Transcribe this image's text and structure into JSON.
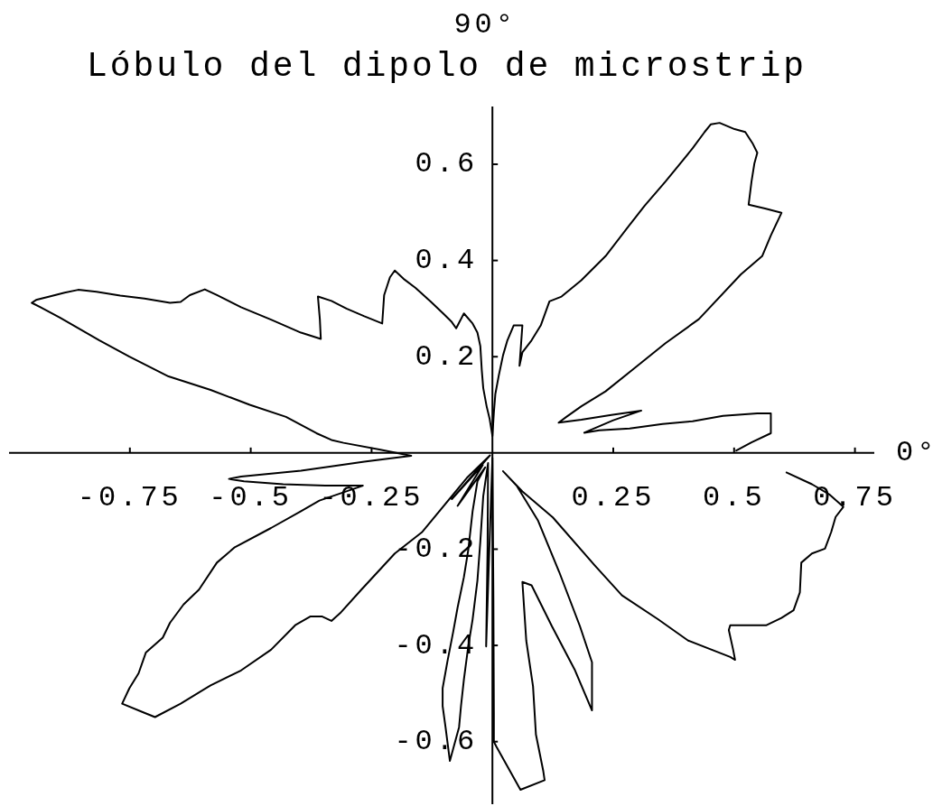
{
  "chart_data": {
    "type": "line",
    "title": "Lóbulo del dipolo de microstrip",
    "xlabel": "0°",
    "ylabel": "90°",
    "color": "#000000",
    "marker": "none",
    "xlim": [
      -1.0,
      0.79
    ],
    "ylim": [
      -0.73,
      0.72
    ],
    "xticks": [
      -0.75,
      -0.5,
      -0.25,
      0.25,
      0.5,
      0.75
    ],
    "yticks": [
      -0.6,
      -0.4,
      -0.2,
      0.2,
      0.4,
      0.6
    ],
    "x": [
      0.503,
      0.536,
      0.576,
      0.576,
      0.548,
      0.477,
      0.414,
      0.352,
      0.284,
      0.221,
      0.19,
      0.25,
      0.308,
      0.246,
      0.184,
      0.137,
      0.153,
      0.184,
      0.234,
      0.296,
      0.358,
      0.427,
      0.514,
      0.558,
      0.576,
      0.598,
      0.564,
      0.53,
      0.536,
      0.542,
      0.548,
      0.539,
      0.523,
      0.501,
      0.47,
      0.452,
      0.439,
      0.414,
      0.389,
      0.358,
      0.315,
      0.277,
      0.234,
      0.184,
      0.143,
      0.118,
      0.1,
      0.081,
      0.062,
      0.056,
      0.062,
      0.044,
      0.031,
      0.022,
      0.013,
      0.006,
      0.003,
      0.0,
      -0.006,
      -0.012,
      -0.019,
      -0.022,
      -0.025,
      -0.031,
      -0.041,
      -0.059,
      -0.075,
      -0.084,
      -0.1,
      -0.128,
      -0.159,
      -0.184,
      -0.202,
      -0.212,
      -0.224,
      -0.228,
      -0.265,
      -0.302,
      -0.333,
      -0.361,
      -0.357,
      -0.355,
      -0.396,
      -0.458,
      -0.52,
      -0.57,
      -0.595,
      -0.626,
      -0.645,
      -0.667,
      -0.72,
      -0.77,
      -0.819,
      -0.857,
      -0.885,
      -0.916,
      -0.944,
      -0.953,
      -0.935,
      -0.894,
      -0.813,
      -0.751,
      -0.67,
      -0.583,
      -0.502,
      -0.427,
      -0.364,
      -0.333,
      -0.308,
      -0.234,
      -0.168,
      -0.202,
      -0.265,
      -0.327,
      -0.396,
      -0.52,
      -0.545,
      -0.514,
      -0.433,
      -0.346,
      -0.268,
      -0.358,
      -0.396,
      -0.458,
      -0.533,
      -0.57,
      -0.607,
      -0.639,
      -0.667,
      -0.682,
      -0.717,
      -0.732,
      -0.751,
      -0.766,
      -0.72,
      -0.698,
      -0.645,
      -0.583,
      -0.52,
      -0.458,
      -0.408,
      -0.377,
      -0.352,
      -0.333,
      -0.315,
      -0.271,
      -0.202,
      -0.146,
      -0.053,
      -0.005,
      -0.084,
      -0.02,
      -0.072,
      -0.015,
      -0.031,
      -0.041,
      -0.05,
      -0.059,
      -0.072,
      -0.081,
      -0.093,
      -0.103,
      -0.103,
      -0.097,
      -0.088,
      -0.069,
      -0.065,
      -0.059,
      -0.05,
      -0.041,
      -0.031,
      -0.025,
      -0.019,
      -0.009,
      -0.01,
      -0.013,
      -0.008,
      0.0,
      0.002,
      0.003,
      0.003,
      0.008,
      0.058,
      0.108,
      0.105,
      0.09,
      0.084,
      0.07,
      0.062,
      0.081,
      0.123,
      0.17,
      0.206,
      0.206,
      0.181,
      0.138,
      0.094,
      0.05,
      0.022,
      0.062,
      0.125,
      0.212,
      0.268,
      0.343,
      0.405,
      0.492,
      0.502,
      0.498,
      0.489,
      0.492,
      0.567,
      0.598,
      0.623,
      0.636,
      0.639,
      0.661,
      0.688,
      0.701,
      0.71,
      0.726,
      0.698,
      0.661,
      0.607
    ],
    "values": [
      0.004,
      0.022,
      0.041,
      0.082,
      0.082,
      0.077,
      0.066,
      0.06,
      0.051,
      0.047,
      0.042,
      0.068,
      0.088,
      0.079,
      0.069,
      0.063,
      0.075,
      0.097,
      0.128,
      0.178,
      0.228,
      0.278,
      0.371,
      0.409,
      0.452,
      0.499,
      0.508,
      0.516,
      0.564,
      0.602,
      0.624,
      0.642,
      0.667,
      0.673,
      0.686,
      0.683,
      0.667,
      0.633,
      0.602,
      0.564,
      0.514,
      0.465,
      0.409,
      0.359,
      0.325,
      0.315,
      0.265,
      0.234,
      0.209,
      0.181,
      0.265,
      0.265,
      0.234,
      0.203,
      0.16,
      0.122,
      0.084,
      0.035,
      0.072,
      0.097,
      0.135,
      0.172,
      0.222,
      0.25,
      0.269,
      0.29,
      0.259,
      0.272,
      0.288,
      0.315,
      0.343,
      0.362,
      0.379,
      0.365,
      0.328,
      0.269,
      0.284,
      0.3,
      0.316,
      0.325,
      0.278,
      0.237,
      0.25,
      0.277,
      0.303,
      0.328,
      0.34,
      0.328,
      0.314,
      0.312,
      0.321,
      0.327,
      0.335,
      0.339,
      0.333,
      0.325,
      0.318,
      0.312,
      0.303,
      0.281,
      0.234,
      0.2,
      0.159,
      0.131,
      0.1,
      0.075,
      0.041,
      0.027,
      0.021,
      0.007,
      -0.006,
      -0.01,
      -0.018,
      -0.027,
      -0.037,
      -0.049,
      -0.054,
      -0.059,
      -0.065,
      -0.068,
      -0.068,
      -0.099,
      -0.121,
      -0.156,
      -0.196,
      -0.228,
      -0.284,
      -0.315,
      -0.353,
      -0.384,
      -0.415,
      -0.458,
      -0.489,
      -0.521,
      -0.54,
      -0.549,
      -0.521,
      -0.483,
      -0.452,
      -0.409,
      -0.358,
      -0.34,
      -0.34,
      -0.349,
      -0.333,
      -0.284,
      -0.209,
      -0.165,
      -0.052,
      -0.005,
      -0.096,
      -0.025,
      -0.11,
      -0.03,
      -0.059,
      -0.121,
      -0.202,
      -0.258,
      -0.321,
      -0.371,
      -0.433,
      -0.489,
      -0.526,
      -0.57,
      -0.64,
      -0.57,
      -0.526,
      -0.471,
      -0.402,
      -0.346,
      -0.265,
      -0.184,
      -0.09,
      -0.021,
      -0.196,
      -0.402,
      -0.25,
      -0.01,
      -0.3,
      -0.54,
      -0.6,
      -0.61,
      -0.7,
      -0.68,
      -0.66,
      -0.585,
      -0.485,
      -0.39,
      -0.268,
      -0.275,
      -0.36,
      -0.45,
      -0.535,
      -0.435,
      -0.36,
      -0.247,
      -0.14,
      -0.068,
      -0.038,
      -0.08,
      -0.134,
      -0.234,
      -0.296,
      -0.346,
      -0.39,
      -0.424,
      -0.43,
      -0.409,
      -0.368,
      -0.358,
      -0.358,
      -0.343,
      -0.327,
      -0.29,
      -0.228,
      -0.209,
      -0.199,
      -0.164,
      -0.133,
      -0.112,
      -0.087,
      -0.065,
      -0.04
    ]
  }
}
